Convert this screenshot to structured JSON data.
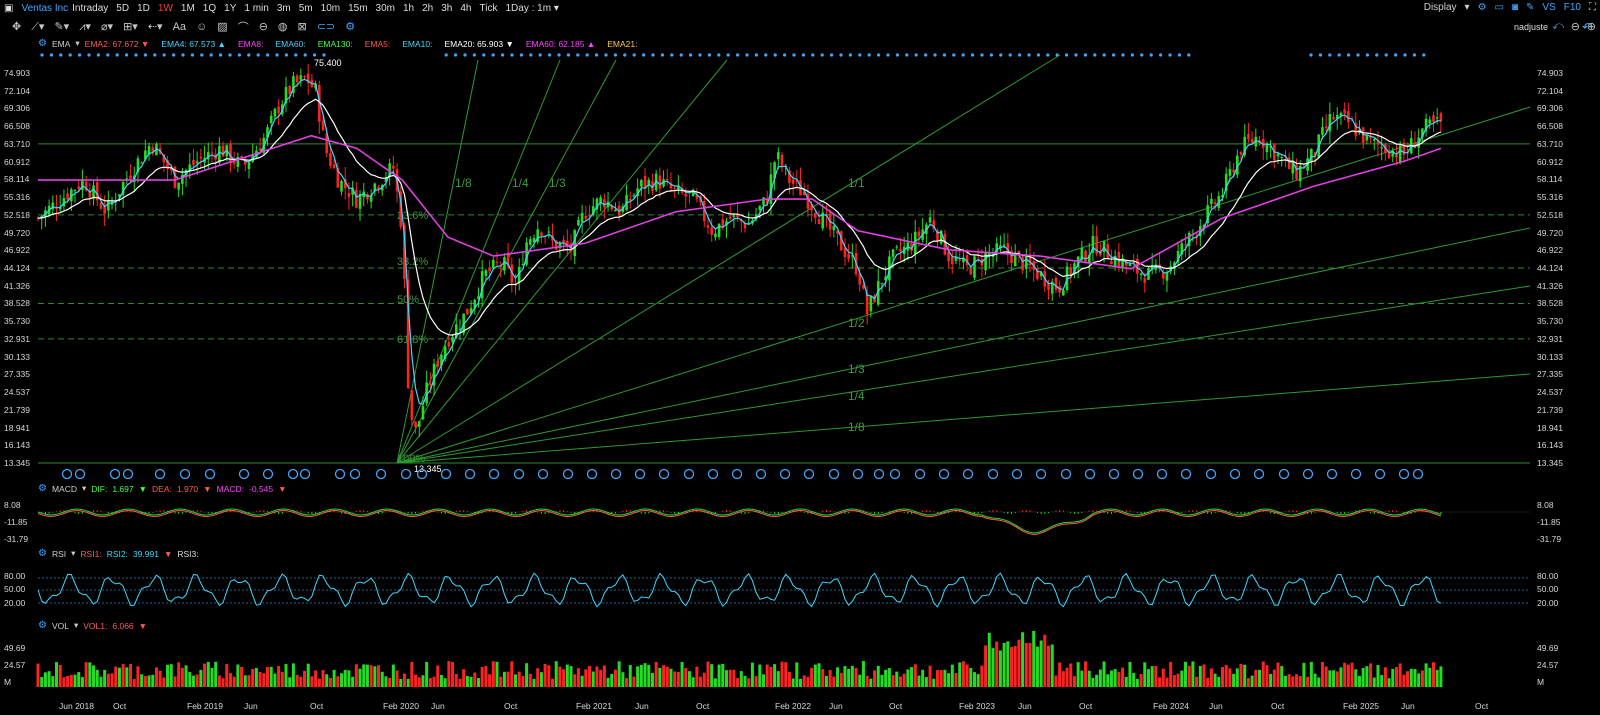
{
  "app": {
    "title": "Ventas Inc",
    "icon": "window-icon"
  },
  "periods": [
    "Intraday",
    "5D",
    "1D",
    "1W",
    "1M",
    "1Q",
    "1Y",
    "1 min",
    "3m",
    "5m",
    "10m",
    "15m",
    "30m",
    "1h",
    "2h",
    "3h",
    "4h",
    "Tick"
  ],
  "active_period": "1W",
  "interval_select": "1Day : 1m",
  "right_menu": {
    "display": "Display",
    "vs": "VS",
    "f10": "F10"
  },
  "toolbar_mode": "nadjuste",
  "ema": {
    "label": "EMA",
    "items": [
      {
        "name": "EMA2:",
        "value": "67.672",
        "color": "#ff5a5a",
        "arrow": "down"
      },
      {
        "name": "EMA4:",
        "value": "67.573",
        "color": "#3fd7ff",
        "arrow": "up"
      },
      {
        "name": "EMA8:",
        "value": "",
        "color": "#ff40ff",
        "arrow": ""
      },
      {
        "name": "EMA60:",
        "value": "",
        "color": "#3fd7ff",
        "arrow": ""
      },
      {
        "name": "EMA130:",
        "value": "",
        "color": "#44ff44",
        "arrow": ""
      },
      {
        "name": "EMA5:",
        "value": "",
        "color": "#ff5a5a",
        "arrow": ""
      },
      {
        "name": "EMA10:",
        "value": "",
        "color": "#3fd7ff",
        "arrow": ""
      },
      {
        "name": "EMA20:",
        "value": "65.903",
        "color": "#ffffff",
        "arrow": "down"
      },
      {
        "name": "EMA60:",
        "value": "62.185",
        "color": "#ff40ff",
        "arrow": "up"
      },
      {
        "name": "EMA21:",
        "value": "",
        "color": "#ffcc33",
        "arrow": ""
      }
    ]
  },
  "price_axis": [
    "74.903",
    "72.104",
    "69.306",
    "66.508",
    "63.710",
    "60.912",
    "58.114",
    "55.316",
    "52.518",
    "49.720",
    "46.922",
    "44.124",
    "41.326",
    "38.528",
    "35.730",
    "32.931",
    "30.133",
    "27.335",
    "24.537",
    "21.739",
    "18.941",
    "16.143",
    "13.345"
  ],
  "annotations": {
    "high": "75.400",
    "low": "13.345"
  },
  "fib_labels": [
    "23.6%",
    "38.2%",
    "50%",
    "61.8%",
    "100%"
  ],
  "fan_labels_top": [
    "1/8",
    "1/4",
    "1/3",
    "1/1"
  ],
  "fan_labels_right": [
    "1/2",
    "1/3",
    "1/4",
    "1/8"
  ],
  "macd": {
    "label": "MACD",
    "dif": {
      "name": "DIF:",
      "value": "1.697"
    },
    "dea": {
      "name": "DEA:",
      "value": "1.970"
    },
    "macd": {
      "name": "MACD:",
      "value": "-0.545"
    },
    "axis": [
      "8.08",
      "-11.85",
      "-31.79"
    ]
  },
  "rsi": {
    "label": "RSI",
    "rsi1": {
      "name": "RSI1:",
      "value": ""
    },
    "rsi2": {
      "name": "RSI2:",
      "value": "39.991"
    },
    "rsi3": {
      "name": "RSI3:",
      "value": ""
    },
    "axis": [
      "80.00",
      "50.00",
      "20.00"
    ]
  },
  "vol": {
    "label": "VOL",
    "vol1": {
      "name": "VOL1:",
      "value": "6.066"
    },
    "axis": [
      "49.69",
      "24.57",
      "M"
    ]
  },
  "time_axis": [
    "Jun 2018",
    "Oct",
    "Feb 2019",
    "Jun",
    "Oct",
    "Feb 2020",
    "Jun",
    "Oct",
    "Feb 2021",
    "Jun",
    "Oct",
    "Feb 2022",
    "Jun",
    "Oct",
    "Feb 2023",
    "Jun",
    "Oct",
    "Feb 2024",
    "Jun",
    "Oct",
    "Feb 2025",
    "Jun",
    "Oct"
  ],
  "colors": {
    "up": "#22dd22",
    "down": "#ff2222",
    "ema_fast": "#3fd7ff",
    "ema_mid": "#ffffff",
    "ema_slow": "#e040e0",
    "fan": "#2f9a2f",
    "accent": "#3fa9ff"
  },
  "chart_data": {
    "type": "candlestick",
    "title": "Ventas Inc",
    "x_ticks": [
      "Jun 2018",
      "Oct",
      "Feb 2019",
      "Jun",
      "Oct",
      "Feb 2020",
      "Jun",
      "Oct",
      "Feb 2021",
      "Jun",
      "Oct",
      "Feb 2022",
      "Jun",
      "Oct",
      "Feb 2023",
      "Jun",
      "Oct",
      "Feb 2024",
      "Jun",
      "Oct",
      "Feb 2025",
      "Jun",
      "Oct"
    ],
    "ylim": [
      13.345,
      74.903
    ],
    "close_path": [
      [
        0,
        52
      ],
      [
        0.5,
        55
      ],
      [
        1,
        58
      ],
      [
        1.5,
        53
      ],
      [
        2,
        59
      ],
      [
        2.5,
        64
      ],
      [
        3,
        58
      ],
      [
        3.5,
        61
      ],
      [
        4,
        63
      ],
      [
        4.5,
        60
      ],
      [
        5,
        65
      ],
      [
        5.3,
        70
      ],
      [
        5.6,
        73
      ],
      [
        5.9,
        74
      ],
      [
        6.1,
        72
      ],
      [
        6.3,
        63
      ],
      [
        6.6,
        58
      ],
      [
        7.0,
        55
      ],
      [
        7.5,
        58
      ],
      [
        7.8,
        60
      ],
      [
        8.0,
        50
      ],
      [
        8.15,
        22
      ],
      [
        8.3,
        18
      ],
      [
        8.5,
        24
      ],
      [
        8.8,
        30
      ],
      [
        9.0,
        33
      ],
      [
        9.4,
        37
      ],
      [
        9.8,
        43
      ],
      [
        10.2,
        45
      ],
      [
        10.5,
        41
      ],
      [
        10.7,
        48
      ],
      [
        11.0,
        51
      ],
      [
        11.3,
        48
      ],
      [
        11.7,
        47
      ],
      [
        12.0,
        53
      ],
      [
        12.4,
        55
      ],
      [
        12.8,
        53
      ],
      [
        13.2,
        57
      ],
      [
        13.6,
        58
      ],
      [
        14.0,
        56
      ],
      [
        14.4,
        55
      ],
      [
        14.8,
        50
      ],
      [
        15.2,
        52
      ],
      [
        15.6,
        51
      ],
      [
        16.0,
        55
      ],
      [
        16.2,
        62
      ],
      [
        16.5,
        58
      ],
      [
        16.8,
        56
      ],
      [
        17.2,
        52
      ],
      [
        17.6,
        48
      ],
      [
        18.0,
        44
      ],
      [
        18.2,
        37
      ],
      [
        18.5,
        42
      ],
      [
        18.8,
        46
      ],
      [
        19.2,
        48
      ],
      [
        19.6,
        52
      ],
      [
        20.0,
        46
      ],
      [
        20.4,
        44
      ],
      [
        20.8,
        46
      ],
      [
        21.2,
        47
      ],
      [
        21.6,
        45
      ],
      [
        22.0,
        43
      ],
      [
        22.4,
        41
      ],
      [
        22.8,
        45
      ],
      [
        23.2,
        48
      ],
      [
        23.6,
        46
      ],
      [
        24.0,
        44
      ],
      [
        24.4,
        43
      ],
      [
        24.8,
        44
      ],
      [
        25.2,
        48
      ],
      [
        25.6,
        52
      ],
      [
        26.0,
        56
      ],
      [
        26.4,
        63
      ],
      [
        26.8,
        65
      ],
      [
        27.2,
        62
      ],
      [
        27.6,
        59
      ],
      [
        28.0,
        62
      ],
      [
        28.4,
        68
      ],
      [
        28.8,
        67
      ],
      [
        29.2,
        64
      ],
      [
        29.6,
        63
      ],
      [
        30.0,
        62
      ],
      [
        30.4,
        66
      ],
      [
        30.8,
        67
      ]
    ],
    "x_range": [
      0,
      31
    ],
    "ema_slow_path": [
      [
        0,
        58
      ],
      [
        3,
        58
      ],
      [
        6,
        65
      ],
      [
        7,
        63
      ],
      [
        8,
        58
      ],
      [
        9,
        49
      ],
      [
        10,
        46
      ],
      [
        12,
        48
      ],
      [
        14,
        53
      ],
      [
        16,
        55
      ],
      [
        17,
        55
      ],
      [
        18,
        50
      ],
      [
        20,
        47
      ],
      [
        22,
        46
      ],
      [
        24,
        44
      ],
      [
        26,
        52
      ],
      [
        28,
        57
      ],
      [
        30,
        61
      ],
      [
        30.8,
        63
      ]
    ],
    "fib_levels": [
      63.71,
      52.518,
      44.124,
      38.528,
      32.931,
      13.345
    ],
    "macd_axis": [
      8.08,
      -11.85,
      -31.79
    ],
    "rsi_levels": [
      80,
      50,
      20
    ],
    "vol_axis": [
      49.69,
      24.57
    ]
  }
}
